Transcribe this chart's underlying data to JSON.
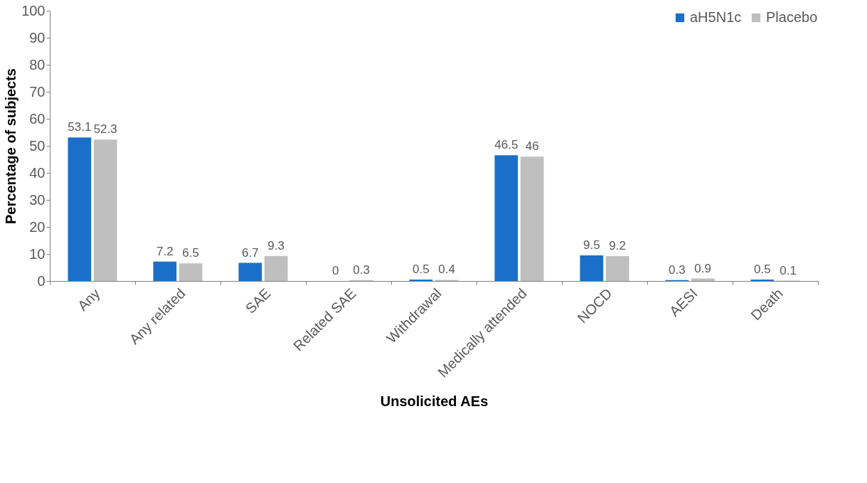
{
  "chart_data": {
    "type": "bar",
    "xlabel": "Unsolicited AEs",
    "ylabel": "Percentage of subjects",
    "categories": [
      "Any",
      "Any related",
      "SAE",
      "Related SAE",
      "Withdrawal",
      "Medically attended",
      "NOCD",
      "AESI",
      "Death"
    ],
    "series": [
      {
        "name": "aH5N1c",
        "color": "#1a70c8",
        "values": [
          53.1,
          7.2,
          6.7,
          0,
          0.5,
          46.5,
          9.5,
          0.3,
          0.5
        ]
      },
      {
        "name": "Placebo",
        "color": "#bfbfbf",
        "values": [
          52.3,
          6.5,
          9.3,
          0.3,
          0.4,
          46,
          9.2,
          0.9,
          0.1
        ]
      }
    ],
    "ylim": [
      0,
      100
    ],
    "yticks": [
      0,
      10,
      20,
      30,
      40,
      50,
      60,
      70,
      80,
      90,
      100
    ],
    "data_labels": true,
    "legend": "top right",
    "grid": false
  }
}
